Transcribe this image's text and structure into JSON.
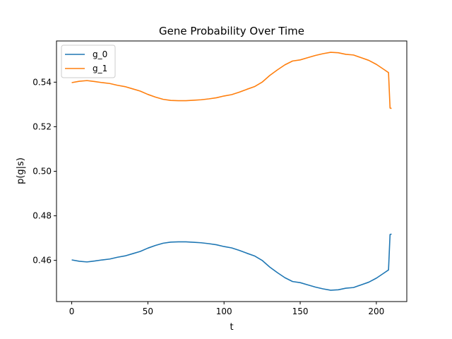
{
  "chart_data": {
    "type": "line",
    "title": "Gene Probability Over Time",
    "xlabel": "t",
    "ylabel": "p(g|s)",
    "xlim": [
      -10,
      220
    ],
    "ylim": [
      0.4415,
      0.5585
    ],
    "xticks": [
      0,
      50,
      100,
      150,
      200
    ],
    "yticks": [
      0.46,
      0.48,
      0.5,
      0.52,
      0.54
    ],
    "ytick_labels": [
      "0.46",
      "0.48",
      "0.50",
      "0.52",
      "0.54"
    ],
    "grid": false,
    "legend": "top-left",
    "series": [
      {
        "name": "g_0",
        "color": "#1f77b4",
        "x": [
          0,
          5,
          10,
          15,
          20,
          25,
          30,
          35,
          40,
          45,
          50,
          55,
          60,
          65,
          70,
          75,
          80,
          85,
          90,
          95,
          100,
          105,
          110,
          115,
          120,
          125,
          130,
          135,
          140,
          145,
          150,
          155,
          160,
          165,
          170,
          175,
          180,
          185,
          190,
          195,
          200,
          205,
          208,
          209,
          210
        ],
        "y": [
          0.4602,
          0.4596,
          0.4593,
          0.4597,
          0.4602,
          0.4606,
          0.4614,
          0.462,
          0.463,
          0.464,
          0.4655,
          0.4667,
          0.4677,
          0.4682,
          0.4683,
          0.4683,
          0.4681,
          0.4679,
          0.4675,
          0.467,
          0.4662,
          0.4656,
          0.4645,
          0.4632,
          0.462,
          0.46,
          0.457,
          0.4545,
          0.4522,
          0.4505,
          0.45,
          0.449,
          0.448,
          0.4472,
          0.4466,
          0.4468,
          0.4475,
          0.4478,
          0.449,
          0.4502,
          0.452,
          0.4543,
          0.4557,
          0.4716,
          0.4718
        ]
      },
      {
        "name": "g_1",
        "color": "#ff7f0e",
        "x": [
          0,
          5,
          10,
          15,
          20,
          25,
          30,
          35,
          40,
          45,
          50,
          55,
          60,
          65,
          70,
          75,
          80,
          85,
          90,
          95,
          100,
          105,
          110,
          115,
          120,
          125,
          130,
          135,
          140,
          145,
          150,
          155,
          160,
          165,
          170,
          175,
          180,
          185,
          190,
          195,
          200,
          205,
          208,
          209,
          210
        ],
        "y": [
          0.5398,
          0.5404,
          0.5407,
          0.5403,
          0.5398,
          0.5394,
          0.5386,
          0.538,
          0.537,
          0.536,
          0.5345,
          0.5333,
          0.5323,
          0.5318,
          0.5317,
          0.5317,
          0.5319,
          0.5321,
          0.5325,
          0.533,
          0.5338,
          0.5344,
          0.5355,
          0.5368,
          0.538,
          0.54,
          0.543,
          0.5455,
          0.5478,
          0.5495,
          0.55,
          0.551,
          0.552,
          0.5528,
          0.5534,
          0.5532,
          0.5525,
          0.5522,
          0.551,
          0.5498,
          0.548,
          0.5457,
          0.5443,
          0.5284,
          0.5282
        ]
      }
    ]
  }
}
